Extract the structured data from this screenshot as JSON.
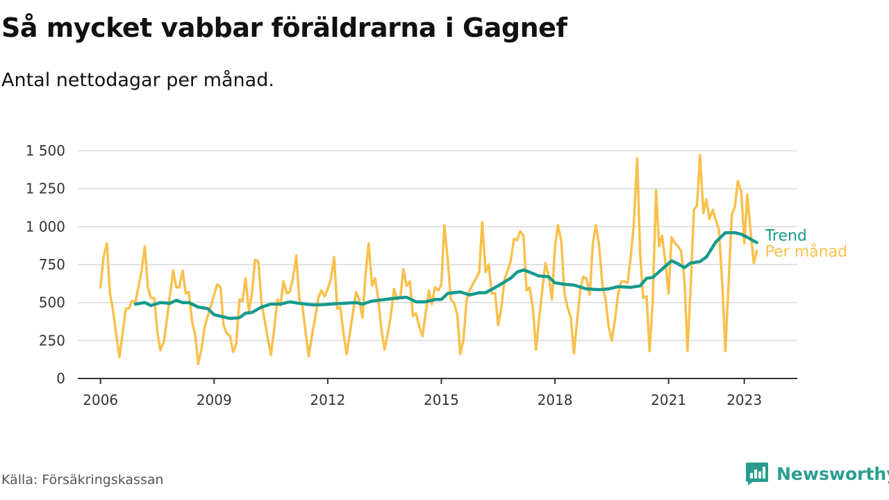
{
  "header": {
    "title": "Så mycket vabbar föräldrarna i Gagnef",
    "subtitle": "Antal nettodagar per månad."
  },
  "footer": {
    "source": "Källa: Försäkringskassan",
    "brand": "Newsworthy",
    "brand_icon": "bar-chart-logo-icon"
  },
  "colors": {
    "per_month": "#f9c04c",
    "trend": "#169a8c",
    "grid": "#d9d9d9",
    "axis": "#333333"
  },
  "chart_data": {
    "type": "line",
    "title": "Så mycket vabbar föräldrarna i Gagnef",
    "subtitle": "Antal nettodagar per månad.",
    "xlabel": "",
    "ylabel": "",
    "x_ticks": [
      2006,
      2009,
      2012,
      2015,
      2018,
      2021,
      2023
    ],
    "x_tick_labels": [
      "2006",
      "2009",
      "2012",
      "2015",
      "2018",
      "2021",
      "2023"
    ],
    "y_ticks": [
      0,
      250,
      500,
      750,
      1000,
      1250,
      1500
    ],
    "y_tick_labels": [
      "0",
      "250",
      "500",
      "750",
      "1 000",
      "1 250",
      "1 500"
    ],
    "xlim": [
      2005.4,
      2024.4
    ],
    "ylim": [
      0,
      1500
    ],
    "grid": true,
    "legend": "direct labels at line ends (right)",
    "series": [
      {
        "name": "Per månad",
        "color": "#f9c04c",
        "points": [
          [
            2006.0,
            600
          ],
          [
            2006.08,
            800
          ],
          [
            2006.17,
            890
          ],
          [
            2006.25,
            560
          ],
          [
            2006.33,
            450
          ],
          [
            2006.42,
            280
          ],
          [
            2006.5,
            140
          ],
          [
            2006.58,
            290
          ],
          [
            2006.67,
            460
          ],
          [
            2006.75,
            460
          ],
          [
            2006.83,
            510
          ],
          [
            2006.92,
            500
          ],
          [
            2007.0,
            600
          ],
          [
            2007.08,
            700
          ],
          [
            2007.17,
            870
          ],
          [
            2007.25,
            600
          ],
          [
            2007.33,
            530
          ],
          [
            2007.42,
            530
          ],
          [
            2007.5,
            310
          ],
          [
            2007.58,
            185
          ],
          [
            2007.67,
            240
          ],
          [
            2007.75,
            380
          ],
          [
            2007.83,
            540
          ],
          [
            2007.92,
            710
          ],
          [
            2008.0,
            600
          ],
          [
            2008.08,
            600
          ],
          [
            2008.17,
            710
          ],
          [
            2008.25,
            560
          ],
          [
            2008.33,
            570
          ],
          [
            2008.42,
            370
          ],
          [
            2008.5,
            290
          ],
          [
            2008.58,
            95
          ],
          [
            2008.67,
            200
          ],
          [
            2008.75,
            340
          ],
          [
            2008.83,
            410
          ],
          [
            2008.92,
            480
          ],
          [
            2009.0,
            550
          ],
          [
            2009.08,
            620
          ],
          [
            2009.17,
            600
          ],
          [
            2009.25,
            350
          ],
          [
            2009.33,
            300
          ],
          [
            2009.42,
            280
          ],
          [
            2009.5,
            175
          ],
          [
            2009.58,
            220
          ],
          [
            2009.67,
            520
          ],
          [
            2009.75,
            510
          ],
          [
            2009.83,
            660
          ],
          [
            2009.92,
            440
          ],
          [
            2010.0,
            560
          ],
          [
            2010.08,
            780
          ],
          [
            2010.17,
            770
          ],
          [
            2010.25,
            500
          ],
          [
            2010.33,
            390
          ],
          [
            2010.42,
            260
          ],
          [
            2010.5,
            155
          ],
          [
            2010.58,
            310
          ],
          [
            2010.67,
            520
          ],
          [
            2010.75,
            480
          ],
          [
            2010.83,
            640
          ],
          [
            2010.92,
            560
          ],
          [
            2011.0,
            570
          ],
          [
            2011.08,
            660
          ],
          [
            2011.17,
            810
          ],
          [
            2011.25,
            520
          ],
          [
            2011.33,
            480
          ],
          [
            2011.42,
            300
          ],
          [
            2011.5,
            145
          ],
          [
            2011.58,
            280
          ],
          [
            2011.67,
            400
          ],
          [
            2011.75,
            530
          ],
          [
            2011.83,
            580
          ],
          [
            2011.92,
            540
          ],
          [
            2012.0,
            590
          ],
          [
            2012.08,
            650
          ],
          [
            2012.17,
            800
          ],
          [
            2012.25,
            460
          ],
          [
            2012.33,
            470
          ],
          [
            2012.42,
            290
          ],
          [
            2012.5,
            160
          ],
          [
            2012.58,
            290
          ],
          [
            2012.67,
            440
          ],
          [
            2012.75,
            570
          ],
          [
            2012.83,
            520
          ],
          [
            2012.92,
            400
          ],
          [
            2013.0,
            690
          ],
          [
            2013.08,
            890
          ],
          [
            2013.17,
            610
          ],
          [
            2013.25,
            660
          ],
          [
            2013.33,
            530
          ],
          [
            2013.42,
            320
          ],
          [
            2013.5,
            190
          ],
          [
            2013.58,
            290
          ],
          [
            2013.67,
            420
          ],
          [
            2013.75,
            590
          ],
          [
            2013.83,
            520
          ],
          [
            2013.92,
            540
          ],
          [
            2014.0,
            720
          ],
          [
            2014.08,
            610
          ],
          [
            2014.17,
            640
          ],
          [
            2014.25,
            410
          ],
          [
            2014.33,
            430
          ],
          [
            2014.42,
            340
          ],
          [
            2014.5,
            280
          ],
          [
            2014.58,
            420
          ],
          [
            2014.67,
            580
          ],
          [
            2014.75,
            490
          ],
          [
            2014.83,
            600
          ],
          [
            2014.92,
            580
          ],
          [
            2015.0,
            620
          ],
          [
            2015.08,
            1010
          ],
          [
            2015.17,
            780
          ],
          [
            2015.25,
            520
          ],
          [
            2015.33,
            500
          ],
          [
            2015.42,
            420
          ],
          [
            2015.5,
            160
          ],
          [
            2015.58,
            250
          ],
          [
            2015.67,
            520
          ],
          [
            2015.75,
            580
          ],
          [
            2015.83,
            620
          ],
          [
            2015.92,
            660
          ],
          [
            2016.0,
            700
          ],
          [
            2016.08,
            1030
          ],
          [
            2016.17,
            700
          ],
          [
            2016.25,
            750
          ],
          [
            2016.33,
            560
          ],
          [
            2016.42,
            560
          ],
          [
            2016.5,
            350
          ],
          [
            2016.58,
            460
          ],
          [
            2016.67,
            650
          ],
          [
            2016.75,
            710
          ],
          [
            2016.83,
            770
          ],
          [
            2016.92,
            920
          ],
          [
            2017.0,
            910
          ],
          [
            2017.08,
            970
          ],
          [
            2017.17,
            940
          ],
          [
            2017.25,
            580
          ],
          [
            2017.33,
            600
          ],
          [
            2017.42,
            460
          ],
          [
            2017.5,
            190
          ],
          [
            2017.58,
            390
          ],
          [
            2017.67,
            590
          ],
          [
            2017.75,
            760
          ],
          [
            2017.83,
            680
          ],
          [
            2017.92,
            520
          ],
          [
            2018.0,
            860
          ],
          [
            2018.08,
            1010
          ],
          [
            2018.17,
            900
          ],
          [
            2018.25,
            560
          ],
          [
            2018.33,
            470
          ],
          [
            2018.42,
            400
          ],
          [
            2018.5,
            165
          ],
          [
            2018.58,
            370
          ],
          [
            2018.67,
            590
          ],
          [
            2018.75,
            670
          ],
          [
            2018.83,
            660
          ],
          [
            2018.92,
            550
          ],
          [
            2019.0,
            890
          ],
          [
            2019.08,
            1010
          ],
          [
            2019.17,
            870
          ],
          [
            2019.25,
            620
          ],
          [
            2019.33,
            530
          ],
          [
            2019.42,
            340
          ],
          [
            2019.5,
            250
          ],
          [
            2019.58,
            380
          ],
          [
            2019.67,
            560
          ],
          [
            2019.75,
            640
          ],
          [
            2019.83,
            640
          ],
          [
            2019.92,
            630
          ],
          [
            2020.0,
            800
          ],
          [
            2020.08,
            1000
          ],
          [
            2020.17,
            1450
          ],
          [
            2020.25,
            820
          ],
          [
            2020.33,
            530
          ],
          [
            2020.42,
            540
          ],
          [
            2020.5,
            180
          ],
          [
            2020.58,
            500
          ],
          [
            2020.67,
            1240
          ],
          [
            2020.75,
            870
          ],
          [
            2020.83,
            940
          ],
          [
            2020.92,
            760
          ],
          [
            2021.0,
            560
          ],
          [
            2021.08,
            930
          ],
          [
            2021.17,
            890
          ],
          [
            2021.25,
            870
          ],
          [
            2021.33,
            840
          ],
          [
            2021.42,
            650
          ],
          [
            2021.5,
            180
          ],
          [
            2021.58,
            580
          ],
          [
            2021.67,
            1110
          ],
          [
            2021.75,
            1140
          ],
          [
            2021.83,
            1470
          ],
          [
            2021.92,
            1090
          ],
          [
            2022.0,
            1180
          ],
          [
            2022.08,
            1050
          ],
          [
            2022.17,
            1110
          ],
          [
            2022.25,
            1040
          ],
          [
            2022.33,
            980
          ],
          [
            2022.42,
            620
          ],
          [
            2022.5,
            180
          ],
          [
            2022.58,
            600
          ],
          [
            2022.67,
            1080
          ],
          [
            2022.75,
            1130
          ],
          [
            2022.83,
            1300
          ],
          [
            2022.92,
            1230
          ],
          [
            2023.0,
            890
          ],
          [
            2023.08,
            1210
          ],
          [
            2023.17,
            960
          ],
          [
            2023.25,
            760
          ],
          [
            2023.33,
            840
          ]
        ]
      },
      {
        "name": "Trend",
        "color": "#169a8c",
        "points": [
          [
            2006.92,
            490
          ],
          [
            2007.17,
            500
          ],
          [
            2007.33,
            480
          ],
          [
            2007.58,
            500
          ],
          [
            2007.83,
            495
          ],
          [
            2008.0,
            515
          ],
          [
            2008.17,
            500
          ],
          [
            2008.33,
            500
          ],
          [
            2008.58,
            470
          ],
          [
            2008.83,
            460
          ],
          [
            2009.0,
            420
          ],
          [
            2009.25,
            405
          ],
          [
            2009.42,
            395
          ],
          [
            2009.67,
            400
          ],
          [
            2009.83,
            430
          ],
          [
            2010.0,
            435
          ],
          [
            2010.25,
            470
          ],
          [
            2010.5,
            490
          ],
          [
            2010.75,
            490
          ],
          [
            2011.0,
            505
          ],
          [
            2011.25,
            495
          ],
          [
            2011.58,
            485
          ],
          [
            2011.83,
            485
          ],
          [
            2012.08,
            490
          ],
          [
            2012.42,
            495
          ],
          [
            2012.75,
            500
          ],
          [
            2012.92,
            490
          ],
          [
            2013.17,
            510
          ],
          [
            2013.5,
            520
          ],
          [
            2013.83,
            530
          ],
          [
            2014.08,
            535
          ],
          [
            2014.33,
            505
          ],
          [
            2014.58,
            505
          ],
          [
            2014.83,
            520
          ],
          [
            2015.0,
            520
          ],
          [
            2015.17,
            560
          ],
          [
            2015.5,
            570
          ],
          [
            2015.75,
            550
          ],
          [
            2016.0,
            565
          ],
          [
            2016.17,
            565
          ],
          [
            2016.5,
            610
          ],
          [
            2016.83,
            660
          ],
          [
            2017.0,
            700
          ],
          [
            2017.17,
            715
          ],
          [
            2017.33,
            700
          ],
          [
            2017.58,
            675
          ],
          [
            2017.83,
            670
          ],
          [
            2018.0,
            630
          ],
          [
            2018.25,
            620
          ],
          [
            2018.5,
            615
          ],
          [
            2018.83,
            590
          ],
          [
            2019.17,
            585
          ],
          [
            2019.42,
            590
          ],
          [
            2019.67,
            605
          ],
          [
            2020.0,
            600
          ],
          [
            2020.25,
            610
          ],
          [
            2020.42,
            660
          ],
          [
            2020.58,
            665
          ],
          [
            2020.83,
            720
          ],
          [
            2021.08,
            775
          ],
          [
            2021.25,
            755
          ],
          [
            2021.42,
            730
          ],
          [
            2021.58,
            760
          ],
          [
            2021.83,
            770
          ],
          [
            2022.0,
            800
          ],
          [
            2022.25,
            900
          ],
          [
            2022.5,
            960
          ],
          [
            2022.75,
            960
          ],
          [
            2022.92,
            950
          ],
          [
            2023.08,
            930
          ],
          [
            2023.25,
            905
          ],
          [
            2023.33,
            895
          ]
        ]
      }
    ]
  }
}
